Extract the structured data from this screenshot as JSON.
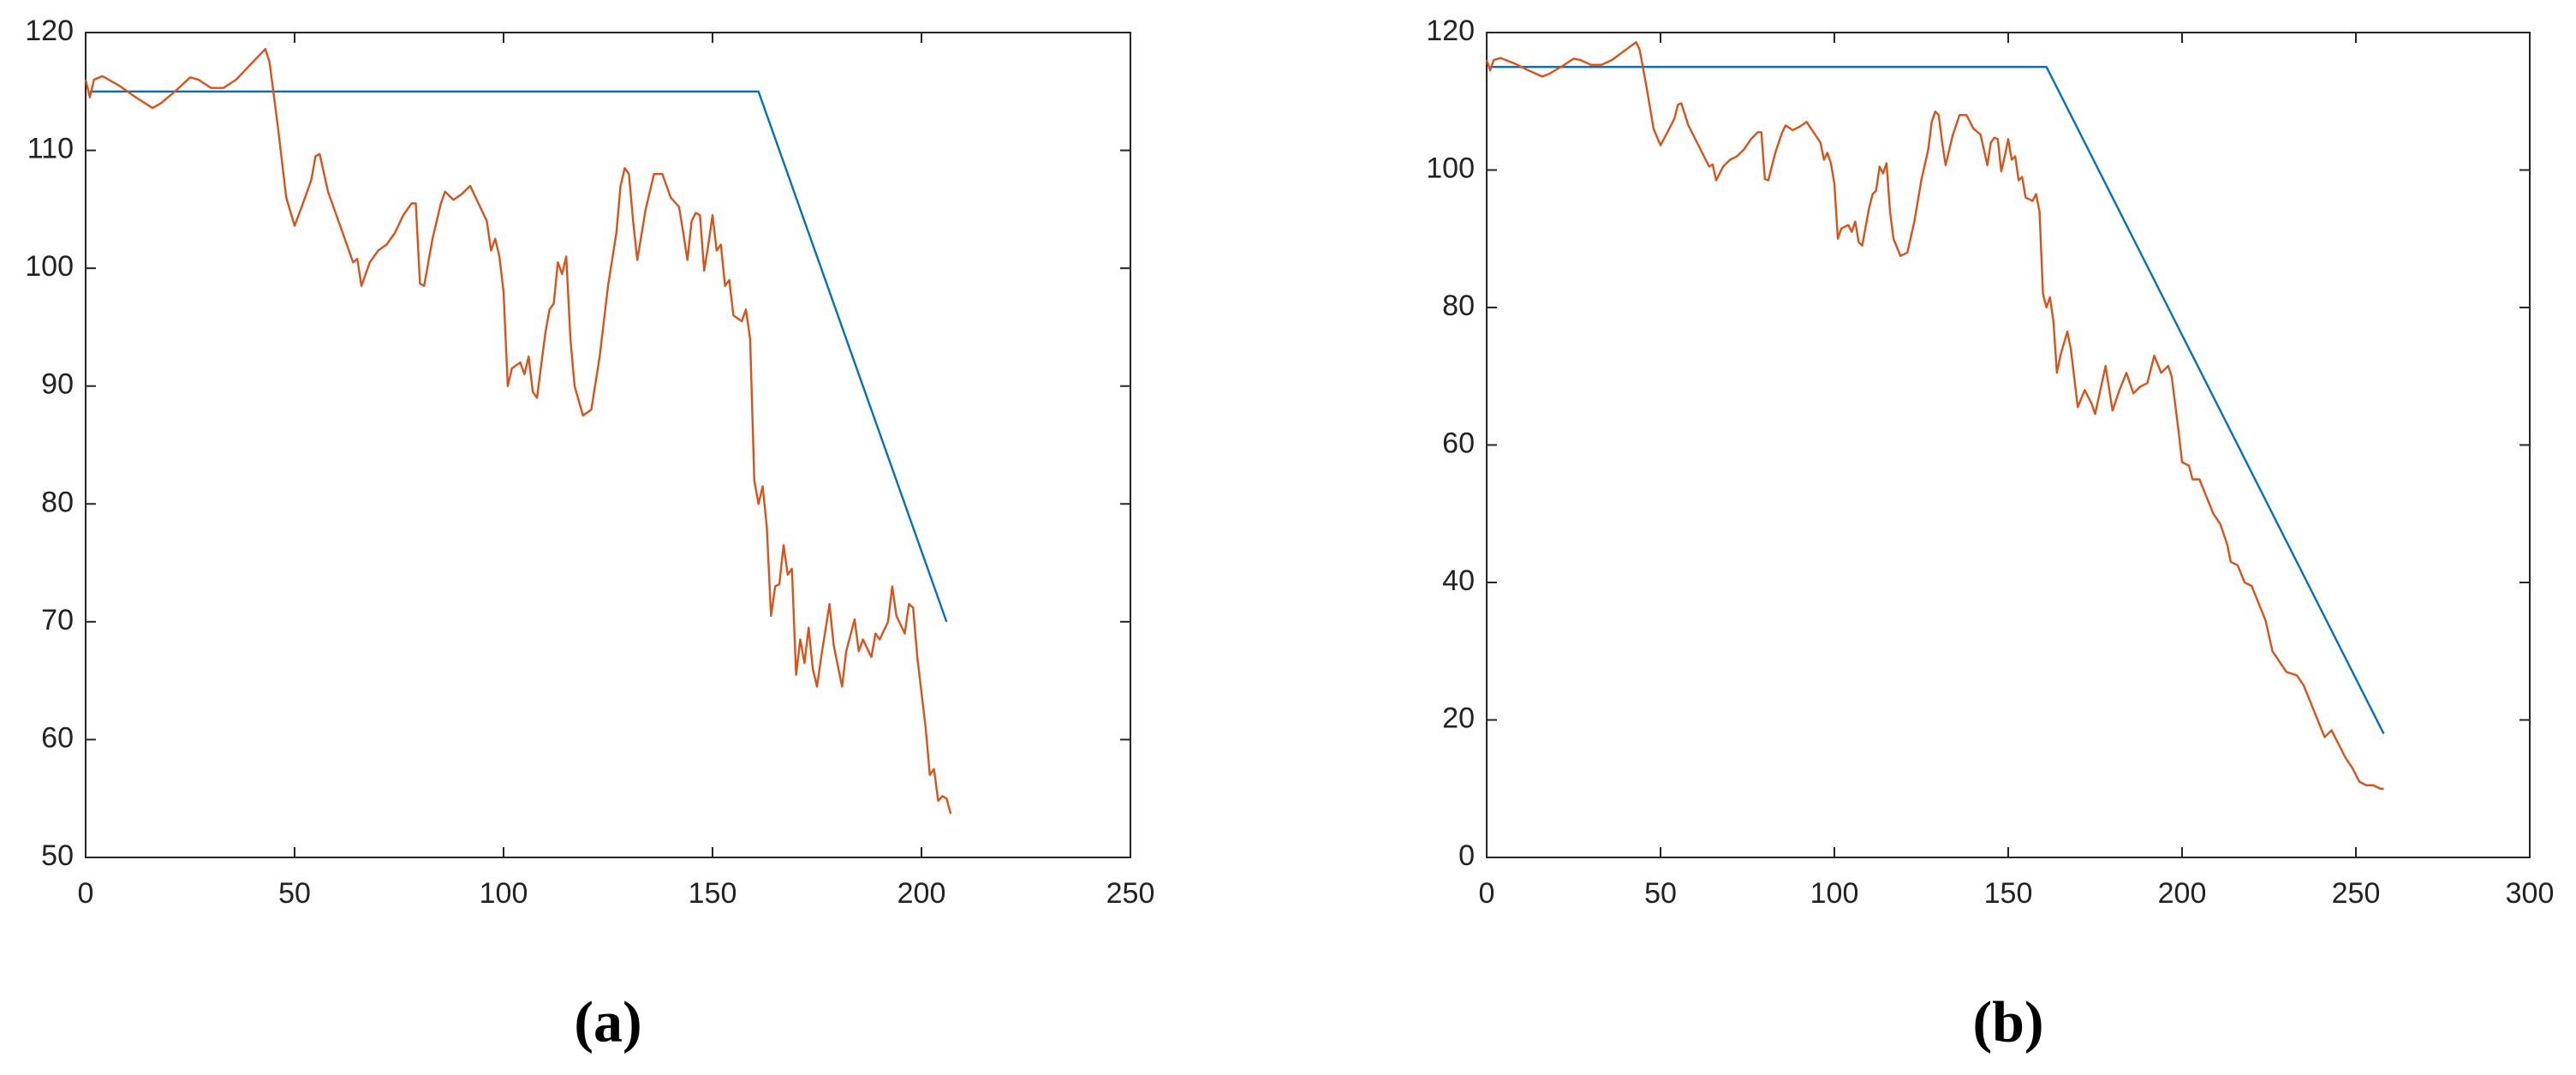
{
  "chart_data": [
    {
      "type": "line",
      "caption": "(a)",
      "xlim": [
        0,
        250
      ],
      "xticks": [
        0,
        50,
        100,
        150,
        200,
        250
      ],
      "ylim": [
        50,
        120
      ],
      "yticks": [
        50,
        60,
        70,
        80,
        90,
        100,
        110,
        120
      ],
      "series": [
        {
          "color": "#0072bd",
          "x": [
            1,
            161,
            206
          ],
          "values": [
            115,
            115,
            70
          ]
        },
        {
          "color": "#d95319",
          "x": [
            0,
            1,
            2,
            4,
            8,
            12,
            16,
            18,
            22,
            25,
            27,
            30,
            33,
            36,
            40,
            43,
            44,
            46,
            48,
            50,
            52,
            54,
            55,
            56,
            58,
            60,
            62,
            64,
            65,
            66,
            68,
            70,
            72,
            74,
            76,
            78,
            79,
            80,
            81,
            83,
            85,
            86,
            88,
            90,
            92,
            94,
            96,
            97,
            98,
            99,
            100,
            101,
            102,
            104,
            105,
            106,
            107,
            108,
            110,
            111,
            112,
            113,
            114,
            115,
            116,
            117,
            119,
            121,
            123,
            125,
            127,
            128,
            129,
            130,
            131,
            132,
            134,
            135,
            136,
            138,
            140,
            142,
            143,
            144,
            145,
            146,
            147,
            148,
            149,
            150,
            151,
            152,
            153,
            154,
            155,
            157,
            158,
            159,
            160,
            161,
            162,
            163,
            164,
            165,
            166,
            167,
            168,
            169,
            170,
            171,
            172,
            173,
            174,
            175,
            176,
            178,
            179,
            181,
            182,
            184,
            185,
            186,
            188,
            189,
            190,
            192,
            193,
            194,
            196,
            197,
            198,
            199,
            200,
            201,
            202,
            203,
            204,
            205,
            206,
            207
          ],
          "values": [
            116,
            114.5,
            116,
            116.3,
            115.5,
            114.5,
            113.6,
            114,
            115.2,
            116.2,
            116,
            115.3,
            115.3,
            116,
            117.5,
            118.6,
            117.5,
            112,
            106,
            103.6,
            105.5,
            107.5,
            109.5,
            109.7,
            106.5,
            104.5,
            102.5,
            100.5,
            100.8,
            98.5,
            100.5,
            101.5,
            102,
            103,
            104.5,
            105.5,
            105.5,
            98.7,
            98.5,
            102.5,
            105.5,
            106.5,
            105.8,
            106.3,
            107,
            105.5,
            104,
            101.5,
            102.5,
            101,
            98,
            90,
            91.5,
            92,
            91,
            92.5,
            89.5,
            89,
            94.5,
            96.5,
            97,
            100.5,
            99.5,
            101,
            94,
            90,
            87.5,
            88,
            92.5,
            98.5,
            103,
            107,
            108.5,
            108,
            104,
            100.7,
            105,
            106.5,
            108,
            108,
            106,
            105.2,
            103,
            100.7,
            104,
            104.7,
            104.5,
            99.8,
            102,
            104.5,
            101.5,
            102,
            98.5,
            99,
            96,
            95.5,
            96.5,
            94,
            82,
            80,
            81.5,
            78,
            70.5,
            73,
            73.2,
            76.5,
            74,
            74.5,
            65.5,
            68.5,
            66.5,
            69.5,
            66,
            64.5,
            67,
            71.5,
            68,
            64.5,
            67.5,
            70.2,
            67.5,
            68.5,
            67,
            69,
            68.5,
            70,
            73,
            70.5,
            69,
            71.5,
            71.2,
            67,
            64,
            61,
            57,
            57.5,
            54.8,
            55.2,
            55,
            53.7
          ]
        }
      ]
    },
    {
      "type": "line",
      "caption": "(b)",
      "xlim": [
        0,
        300
      ],
      "xticks": [
        0,
        50,
        100,
        150,
        200,
        250,
        300
      ],
      "ylim": [
        0,
        120
      ],
      "yticks": [
        0,
        20,
        40,
        60,
        80,
        100,
        120
      ],
      "series": [
        {
          "color": "#0072bd",
          "x": [
            1,
            161,
            258
          ],
          "values": [
            115,
            115,
            18
          ]
        },
        {
          "color": "#d95319",
          "x": [
            0,
            1,
            2,
            4,
            8,
            12,
            16,
            18,
            22,
            25,
            27,
            30,
            33,
            36,
            40,
            43,
            44,
            46,
            48,
            50,
            52,
            54,
            55,
            56,
            58,
            60,
            62,
            64,
            65,
            66,
            68,
            70,
            72,
            74,
            76,
            78,
            79,
            80,
            81,
            83,
            85,
            86,
            88,
            90,
            92,
            94,
            96,
            97,
            98,
            99,
            100,
            101,
            102,
            104,
            105,
            106,
            107,
            108,
            110,
            111,
            112,
            113,
            114,
            115,
            116,
            117,
            119,
            121,
            123,
            125,
            127,
            128,
            129,
            130,
            131,
            132,
            134,
            135,
            136,
            138,
            140,
            142,
            143,
            144,
            145,
            146,
            147,
            148,
            149,
            150,
            151,
            152,
            153,
            154,
            155,
            157,
            158,
            159,
            160,
            161,
            162,
            163,
            164,
            165,
            167,
            168,
            170,
            172,
            174,
            175,
            178,
            180,
            182,
            184,
            186,
            188,
            190,
            192,
            194,
            196,
            197,
            199,
            200,
            202,
            203,
            205,
            207,
            209,
            211,
            213,
            214,
            216,
            218,
            220,
            222,
            224,
            226,
            228,
            230,
            233,
            235,
            237,
            239,
            241,
            243,
            245,
            247,
            249,
            251,
            253,
            255,
            257,
            258
          ],
          "values": [
            116,
            114.5,
            116,
            116.3,
            115.5,
            114.5,
            113.6,
            114,
            115.2,
            116.2,
            116,
            115.3,
            115.3,
            116,
            117.5,
            118.6,
            117.5,
            112,
            106,
            103.6,
            105.5,
            107.5,
            109.5,
            109.7,
            106.5,
            104.5,
            102.5,
            100.5,
            100.8,
            98.5,
            100.5,
            101.5,
            102,
            103,
            104.5,
            105.5,
            105.5,
            98.7,
            98.5,
            102.5,
            105.5,
            106.5,
            105.8,
            106.3,
            107,
            105.5,
            104,
            101.5,
            102.5,
            101,
            98,
            90,
            91.5,
            92,
            91,
            92.5,
            89.5,
            89,
            94.5,
            96.5,
            97,
            100.5,
            99.5,
            101,
            94,
            90,
            87.5,
            88,
            92.5,
            98.5,
            103,
            107,
            108.5,
            108,
            104,
            100.7,
            105,
            106.5,
            108,
            108,
            106,
            105.2,
            103,
            100.7,
            104,
            104.7,
            104.5,
            99.8,
            102,
            104.5,
            101.5,
            102,
            98.5,
            99,
            96,
            95.5,
            96.5,
            94,
            82,
            80,
            81.5,
            78,
            70.5,
            73,
            76.5,
            74,
            65.5,
            68,
            66,
            64.5,
            71.5,
            65,
            68,
            70.5,
            67.5,
            68.5,
            69,
            73,
            70.5,
            71.5,
            70,
            62,
            57.5,
            57,
            55,
            55,
            52.5,
            50,
            48.5,
            45.5,
            43,
            42.5,
            40,
            39.5,
            37,
            34.5,
            30,
            28.5,
            27,
            26.5,
            25,
            22.5,
            20,
            17.5,
            18.5,
            16.5,
            14.5,
            13,
            11,
            10.5,
            10.5,
            10,
            10
          ]
        }
      ]
    }
  ]
}
